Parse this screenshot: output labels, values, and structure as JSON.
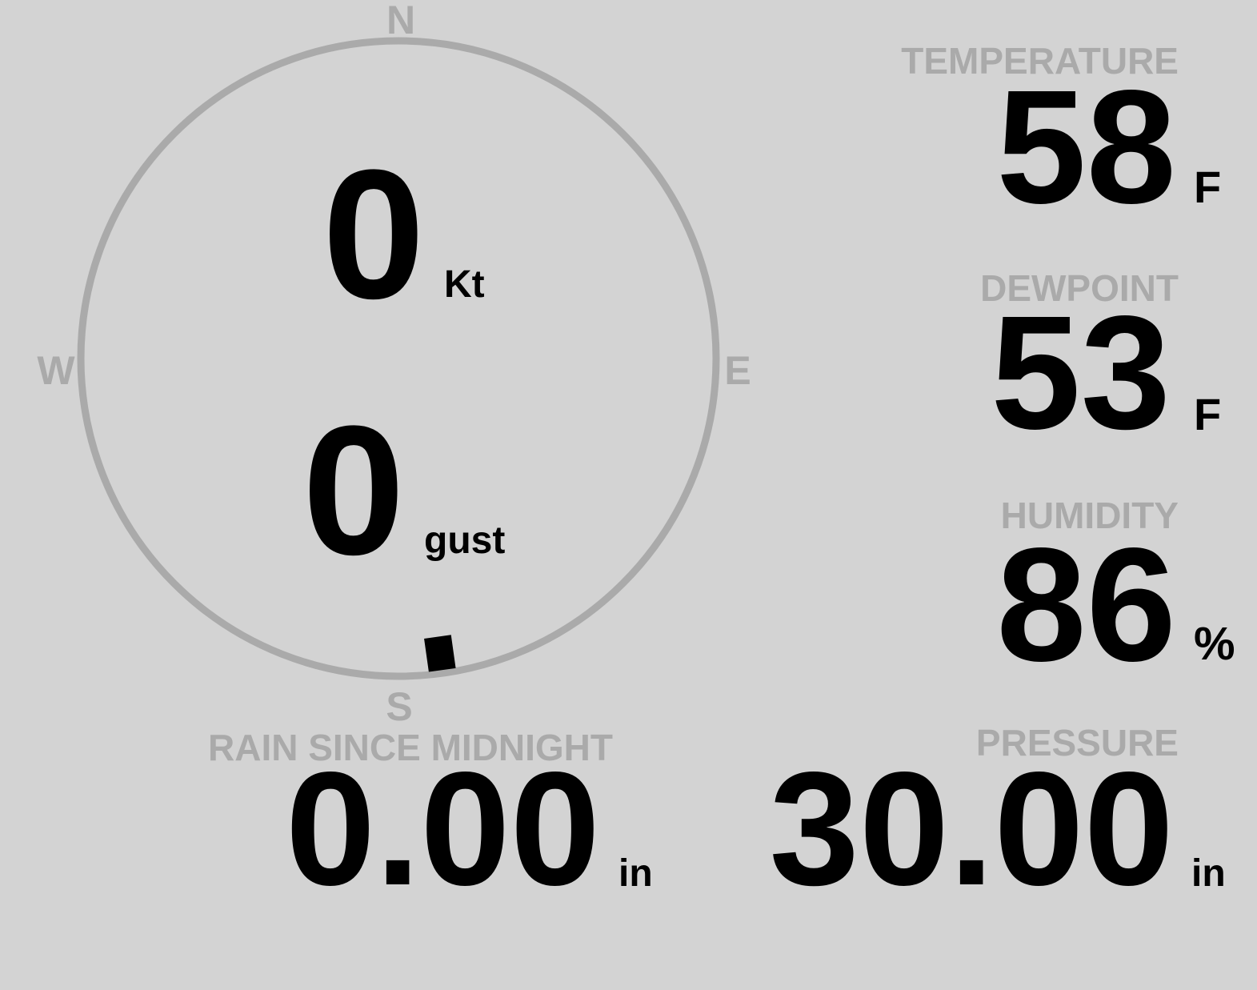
{
  "colors": {
    "background": "#d3d3d3",
    "label": "#aaaaaa",
    "value": "#000000",
    "ring": "#aaaaaa"
  },
  "compass": {
    "north": "N",
    "south": "S",
    "east": "E",
    "west": "W",
    "wind_direction_deg": 172
  },
  "wind": {
    "speed": "0",
    "speed_unit": "Kt",
    "gust": "0",
    "gust_unit": "gust"
  },
  "temperature": {
    "label": "TEMPERATURE",
    "value": "58",
    "unit": "F"
  },
  "dewpoint": {
    "label": "DEWPOINT",
    "value": "53",
    "unit": "F"
  },
  "humidity": {
    "label": "HUMIDITY",
    "value": "86",
    "unit": "%"
  },
  "pressure": {
    "label": "PRESSURE",
    "value": "30.00",
    "unit": "in"
  },
  "rain": {
    "label": "RAIN SINCE MIDNIGHT",
    "value": "0.00",
    "unit": "in"
  }
}
